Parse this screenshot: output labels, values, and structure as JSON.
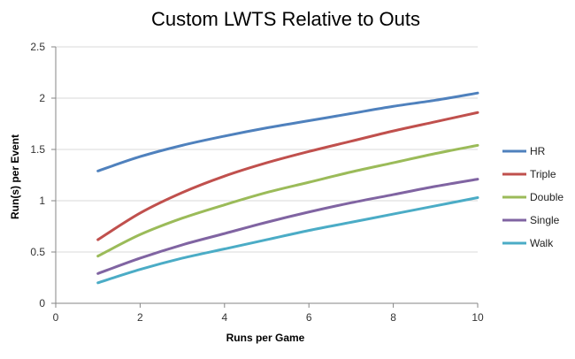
{
  "chart_data": {
    "type": "line",
    "title": "Custom LWTS Relative to Outs",
    "xlabel": "Runs per Game",
    "ylabel": "Run(s) per Event",
    "xlim": [
      0,
      10
    ],
    "ylim": [
      0,
      2.5
    ],
    "xticks": [
      0,
      2,
      4,
      6,
      8,
      10
    ],
    "yticks": [
      0,
      0.5,
      1,
      1.5,
      2,
      2.5
    ],
    "ytick_labels": [
      "0",
      "0.5",
      "1",
      "1.5",
      "2",
      "2.5"
    ],
    "xtick_labels": [
      "0",
      "2",
      "4",
      "6",
      "8",
      "10"
    ],
    "grid": "horizontal",
    "legend_position": "right",
    "x": [
      1,
      2,
      3,
      4,
      5,
      6,
      7,
      8,
      9,
      10
    ],
    "series": [
      {
        "name": "HR",
        "color": "#4F81BD",
        "values": [
          1.29,
          1.43,
          1.54,
          1.63,
          1.71,
          1.78,
          1.85,
          1.92,
          1.98,
          2.05
        ]
      },
      {
        "name": "Triple",
        "color": "#C0504D",
        "values": [
          0.62,
          0.88,
          1.08,
          1.24,
          1.37,
          1.48,
          1.58,
          1.68,
          1.77,
          1.86
        ]
      },
      {
        "name": "Double",
        "color": "#9BBB59",
        "values": [
          0.46,
          0.67,
          0.83,
          0.96,
          1.08,
          1.18,
          1.28,
          1.37,
          1.46,
          1.54
        ]
      },
      {
        "name": "Single",
        "color": "#8064A2",
        "values": [
          0.29,
          0.44,
          0.57,
          0.68,
          0.79,
          0.89,
          0.98,
          1.06,
          1.14,
          1.21
        ]
      },
      {
        "name": "Walk",
        "color": "#4BACC6",
        "values": [
          0.2,
          0.33,
          0.44,
          0.53,
          0.62,
          0.71,
          0.79,
          0.87,
          0.95,
          1.03
        ]
      }
    ]
  }
}
